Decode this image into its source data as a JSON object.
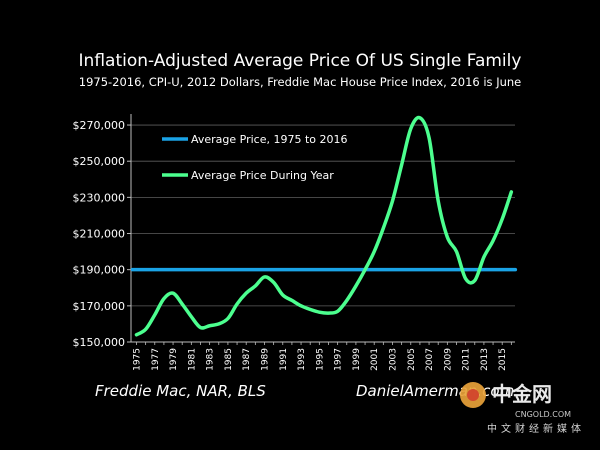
{
  "chart_data": {
    "type": "line",
    "title": "Inflation-Adjusted Average Price Of US Single Family",
    "subtitle": "1975-2016, CPI-U, 2012 Dollars, Freddie Mac House Price Index, 2016 is June",
    "xlabel": "",
    "ylabel": "",
    "ylim": [
      150000,
      275000
    ],
    "xlim": [
      1975,
      2016
    ],
    "grid": true,
    "legend_position": "top-left",
    "y_ticks": [
      150000,
      170000,
      190000,
      210000,
      230000,
      250000,
      270000
    ],
    "y_tick_labels": [
      "$150,000",
      "$170,000",
      "$190,000",
      "$210,000",
      "$230,000",
      "$250,000",
      "$270,000"
    ],
    "x_ticks": [
      1975,
      1977,
      1979,
      1981,
      1983,
      1985,
      1987,
      1989,
      1991,
      1993,
      1995,
      1997,
      1999,
      2001,
      2003,
      2005,
      2007,
      2009,
      2011,
      2013,
      2015
    ],
    "x_tick_labels": [
      "1975",
      "1977",
      "1979",
      "1981",
      "1983",
      "1985",
      "1987",
      "1989",
      "1991",
      "1993",
      "1995",
      "1997",
      "1999",
      "2001",
      "2003",
      "2005",
      "2007",
      "2009",
      "2011",
      "2013",
      "2015"
    ],
    "series": [
      {
        "name": "Average Price, 1975 to 2016",
        "color": "#1aa3e6",
        "x": [
          1975,
          2016
        ],
        "values": [
          190000,
          190000
        ]
      },
      {
        "name": "Average Price During Year",
        "color": "#4cff8f",
        "x": [
          1975,
          1976,
          1977,
          1978,
          1979,
          1980,
          1981,
          1982,
          1983,
          1984,
          1985,
          1986,
          1987,
          1988,
          1989,
          1990,
          1991,
          1992,
          1993,
          1994,
          1995,
          1996,
          1997,
          1998,
          1999,
          2000,
          2001,
          2002,
          2003,
          2004,
          2005,
          2006,
          2007,
          2008,
          2009,
          2010,
          2011,
          2012,
          2013,
          2014,
          2015,
          2016
        ],
        "values": [
          154000,
          157000,
          165000,
          174000,
          177000,
          171000,
          164000,
          158000,
          159000,
          160000,
          163000,
          171000,
          177000,
          181000,
          186000,
          183000,
          176000,
          173000,
          170000,
          168000,
          166500,
          166000,
          167000,
          173000,
          181000,
          190000,
          200000,
          213000,
          228000,
          248000,
          268000,
          274000,
          263000,
          228000,
          208000,
          200000,
          185000,
          184000,
          197000,
          206000,
          218000,
          233000
        ]
      }
    ]
  },
  "footer": {
    "source": "Freddie Mac, NAR, BLS",
    "author": "DanielAmerman.com"
  },
  "watermark": {
    "main": "中金网",
    "sub": "CNGOLD.COM",
    "cn": "中文财经新媒体",
    "colors": [
      "#e8a23a",
      "#d2452d"
    ]
  }
}
